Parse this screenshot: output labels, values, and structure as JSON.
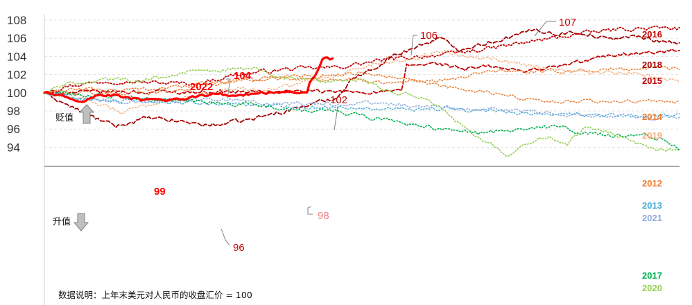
{
  "chart_data": {
    "type": "line",
    "title": "",
    "xlabel": "",
    "ylabel": "",
    "ylim": [
      93,
      108
    ],
    "y_ticks": [
      94,
      96,
      98,
      100,
      102,
      104,
      106,
      108
    ],
    "baseline": 100,
    "note": "数据说明：上年末美元对人民币的收盘汇价 = 100",
    "depreciation_label": "贬值",
    "appreciation_label": "升值",
    "x_points": 250,
    "series": [
      {
        "name": "2016",
        "color": "#c00000",
        "style": "dotted",
        "width": 1.8,
        "anchors": [
          [
            0,
            100
          ],
          [
            10,
            100.8
          ],
          [
            25,
            101.3
          ],
          [
            45,
            101.1
          ],
          [
            60,
            101
          ],
          [
            75,
            102
          ],
          [
            95,
            102.6
          ],
          [
            115,
            102.8
          ],
          [
            135,
            103.7
          ],
          [
            160,
            104.3
          ],
          [
            175,
            104.9
          ],
          [
            190,
            105.6
          ],
          [
            210,
            106.5
          ],
          [
            225,
            107
          ],
          [
            240,
            107.1
          ],
          [
            249,
            107.1
          ]
        ]
      },
      {
        "name": "2018",
        "color": "#a50000",
        "style": "dash",
        "width": 1.8,
        "anchors": [
          [
            0,
            100
          ],
          [
            10,
            98.5
          ],
          [
            20,
            97.2
          ],
          [
            28,
            96.3
          ],
          [
            40,
            97.2
          ],
          [
            55,
            96.8
          ],
          [
            65,
            96.4
          ],
          [
            80,
            97
          ],
          [
            100,
            98.4
          ],
          [
            115,
            99.5
          ],
          [
            120,
            101.5
          ],
          [
            127,
            102.3
          ],
          [
            135,
            103.8
          ],
          [
            145,
            105
          ],
          [
            155,
            106
          ],
          [
            162,
            104.8
          ],
          [
            175,
            105.6
          ],
          [
            185,
            106.3
          ],
          [
            193,
            107
          ],
          [
            200,
            106.5
          ],
          [
            210,
            106.7
          ],
          [
            220,
            105.9
          ],
          [
            230,
            106.2
          ],
          [
            240,
            105.8
          ],
          [
            249,
            105.5
          ]
        ]
      },
      {
        "name": "2015",
        "color": "#c00000",
        "style": "dash",
        "width": 1.8,
        "anchors": [
          [
            0,
            100
          ],
          [
            25,
            100.1
          ],
          [
            60,
            100.1
          ],
          [
            100,
            100.1
          ],
          [
            130,
            100.1
          ],
          [
            140,
            100.1
          ],
          [
            142,
            103
          ],
          [
            155,
            103.2
          ],
          [
            165,
            102.6
          ],
          [
            175,
            102.9
          ],
          [
            185,
            102.4
          ],
          [
            200,
            102.8
          ],
          [
            212,
            103.5
          ],
          [
            225,
            104.3
          ],
          [
            240,
            104.4
          ],
          [
            249,
            104.7
          ]
        ]
      },
      {
        "name": "2014",
        "color": "#ed7d31",
        "style": "dotted",
        "width": 1.5,
        "anchors": [
          [
            0,
            100
          ],
          [
            25,
            99.9
          ],
          [
            50,
            100.2
          ],
          [
            75,
            101.3
          ],
          [
            100,
            102
          ],
          [
            110,
            101.8
          ],
          [
            125,
            102.3
          ],
          [
            145,
            101.2
          ],
          [
            160,
            101.4
          ],
          [
            175,
            102.4
          ],
          [
            195,
            102.3
          ],
          [
            215,
            102.5
          ],
          [
            230,
            102.6
          ],
          [
            240,
            102.8
          ],
          [
            249,
            102.6
          ]
        ]
      },
      {
        "name": "2019",
        "color": "#f4b183",
        "style": "dotted",
        "width": 1.5,
        "anchors": [
          [
            0,
            100
          ],
          [
            15,
            99.2
          ],
          [
            25,
            98.4
          ],
          [
            30,
            97.8
          ],
          [
            45,
            99
          ],
          [
            60,
            99.6
          ],
          [
            75,
            100.5
          ],
          [
            90,
            100.4
          ],
          [
            100,
            101
          ],
          [
            115,
            102
          ],
          [
            130,
            103.2
          ],
          [
            145,
            103.8
          ],
          [
            155,
            104.6
          ],
          [
            170,
            104
          ],
          [
            185,
            103.3
          ],
          [
            200,
            102.6
          ],
          [
            215,
            102.2
          ],
          [
            230,
            102.1
          ],
          [
            249,
            101.3
          ]
        ]
      },
      {
        "name": "2012",
        "color": "#ed7d31",
        "style": "dotted",
        "width": 1.5,
        "anchors": [
          [
            0,
            100
          ],
          [
            15,
            100.4
          ],
          [
            30,
            100.3
          ],
          [
            50,
            100.6
          ],
          [
            70,
            101.2
          ],
          [
            90,
            101.6
          ],
          [
            110,
            101.5
          ],
          [
            130,
            101.3
          ],
          [
            145,
            101.1
          ],
          [
            160,
            100.5
          ],
          [
            175,
            100
          ],
          [
            190,
            99.3
          ],
          [
            205,
            99
          ],
          [
            220,
            99.1
          ],
          [
            235,
            99
          ],
          [
            249,
            99
          ]
        ]
      },
      {
        "name": "2013",
        "color": "#4baad6",
        "style": "dotted",
        "width": 1.5,
        "anchors": [
          [
            0,
            100
          ],
          [
            15,
            99.3
          ],
          [
            35,
            99
          ],
          [
            55,
            98.9
          ],
          [
            75,
            98.7
          ],
          [
            95,
            98.5
          ],
          [
            115,
            98.4
          ],
          [
            135,
            98.3
          ],
          [
            155,
            98.2
          ],
          [
            175,
            98
          ],
          [
            195,
            97.7
          ],
          [
            215,
            97.5
          ],
          [
            235,
            97.4
          ],
          [
            249,
            97.5
          ]
        ]
      },
      {
        "name": "2021",
        "color": "#8faadc",
        "style": "dotted",
        "width": 1.5,
        "anchors": [
          [
            0,
            100
          ],
          [
            15,
            99.5
          ],
          [
            30,
            99
          ],
          [
            50,
            99.3
          ],
          [
            70,
            99.2
          ],
          [
            90,
            98.8
          ],
          [
            110,
            98.8
          ],
          [
            130,
            98.8
          ],
          [
            145,
            98.6
          ],
          [
            165,
            98.3
          ],
          [
            185,
            98.1
          ],
          [
            205,
            97.6
          ],
          [
            225,
            97.5
          ],
          [
            240,
            97.3
          ],
          [
            249,
            97.4
          ]
        ]
      },
      {
        "name": "2017",
        "color": "#00b050",
        "style": "dotted",
        "width": 1.6,
        "anchors": [
          [
            0,
            100
          ],
          [
            20,
            99.7
          ],
          [
            40,
            99.3
          ],
          [
            60,
            99
          ],
          [
            80,
            98.7
          ],
          [
            100,
            98.1
          ],
          [
            115,
            97.9
          ],
          [
            130,
            97.2
          ],
          [
            145,
            96.5
          ],
          [
            160,
            95.8
          ],
          [
            170,
            95.5
          ],
          [
            185,
            96
          ],
          [
            200,
            96.3
          ],
          [
            212,
            95.5
          ],
          [
            225,
            95.2
          ],
          [
            235,
            95.3
          ],
          [
            243,
            94.8
          ],
          [
            249,
            93.8
          ]
        ]
      },
      {
        "name": "2020",
        "color": "#92d050",
        "style": "dotted",
        "width": 1.6,
        "anchors": [
          [
            0,
            100
          ],
          [
            10,
            101
          ],
          [
            25,
            101.5
          ],
          [
            40,
            101.4
          ],
          [
            55,
            102.2
          ],
          [
            65,
            102.4
          ],
          [
            80,
            102.8
          ],
          [
            95,
            101.6
          ],
          [
            110,
            101.2
          ],
          [
            125,
            101.3
          ],
          [
            135,
            100.1
          ],
          [
            150,
            99.5
          ],
          [
            160,
            97.2
          ],
          [
            168,
            95.2
          ],
          [
            176,
            94.2
          ],
          [
            182,
            93.1
          ],
          [
            190,
            94.6
          ],
          [
            198,
            95.2
          ],
          [
            205,
            94.3
          ],
          [
            212,
            96.3
          ],
          [
            220,
            95.8
          ],
          [
            230,
            94.6
          ],
          [
            240,
            93.8
          ],
          [
            249,
            93.8
          ]
        ]
      },
      {
        "name": "2022",
        "color": "#ff0000",
        "style": "solid",
        "width": 3.2,
        "anchors": [
          [
            0,
            100
          ],
          [
            8,
            99.6
          ],
          [
            15,
            99.1
          ],
          [
            22,
            99.8
          ],
          [
            30,
            99.6
          ],
          [
            38,
            99.2
          ],
          [
            45,
            99.1
          ],
          [
            52,
            99.2
          ],
          [
            58,
            99.5
          ],
          [
            66,
            99.9
          ],
          [
            75,
            99.7
          ],
          [
            85,
            100
          ],
          [
            95,
            100
          ],
          [
            100,
            100
          ],
          [
            103,
            100.1
          ],
          [
            104,
            101.2
          ],
          [
            107,
            102.3
          ],
          [
            109,
            103.7
          ],
          [
            111,
            103.8
          ],
          [
            113,
            103.7
          ]
        ]
      }
    ],
    "annotations": [
      {
        "text": "2022",
        "color": "#ff0000",
        "size": 20,
        "bold": true
      },
      {
        "text": "104",
        "color": "#ff0000",
        "size": 20,
        "bold": true
      },
      {
        "text": "99",
        "color": "#ff0000",
        "size": 20,
        "bold": true
      },
      {
        "text": "106",
        "color": "#c00000",
        "size": 14,
        "bold": false
      },
      {
        "text": "107",
        "color": "#c00000",
        "size": 14,
        "bold": false
      },
      {
        "text": "102",
        "color": "#c00000",
        "size": 14,
        "bold": false
      },
      {
        "text": "98",
        "color": "#f08080",
        "size": 14,
        "bold": false
      },
      {
        "text": "96",
        "color": "#c00000",
        "size": 14,
        "bold": false
      }
    ]
  }
}
